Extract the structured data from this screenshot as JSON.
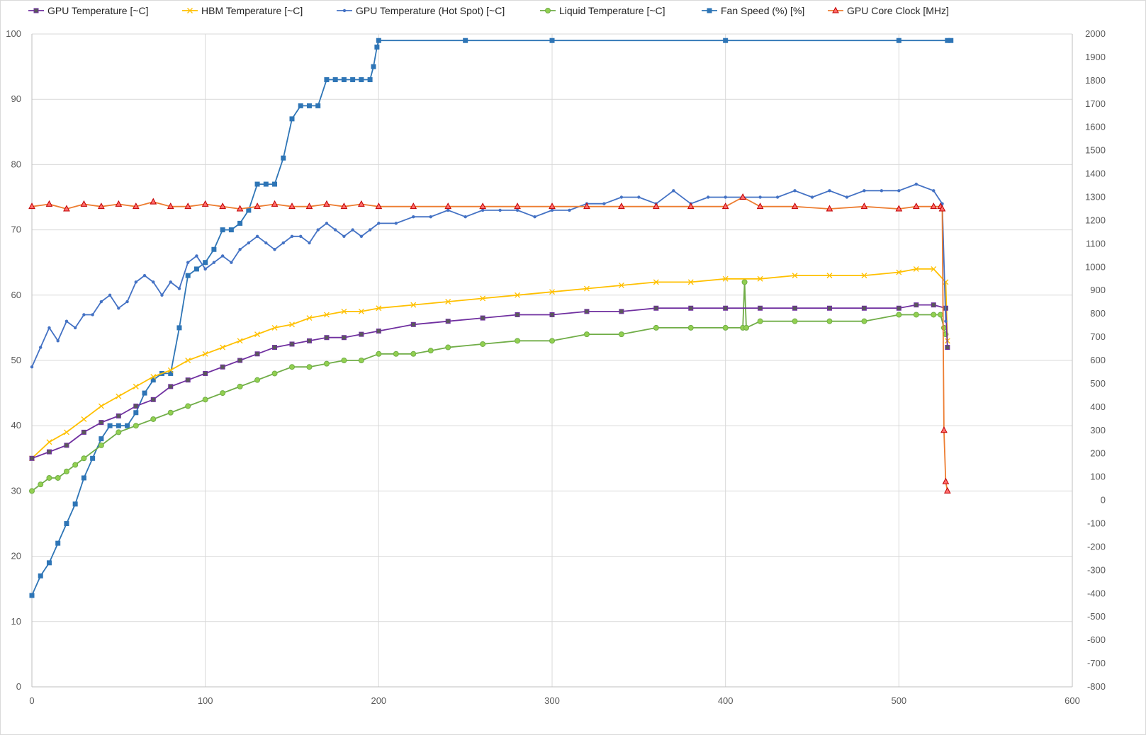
{
  "chart_data": {
    "type": "line",
    "title": "",
    "xlabel": "",
    "ylabel": "",
    "y2label": "",
    "xlim": [
      0,
      600
    ],
    "ylim": [
      0,
      100
    ],
    "y2lim": [
      -800,
      2000
    ],
    "x_ticks": [
      0,
      100,
      200,
      300,
      400,
      500,
      600
    ],
    "y_ticks": [
      0,
      10,
      20,
      30,
      40,
      50,
      60,
      70,
      80,
      90,
      100
    ],
    "y2_ticks": [
      -800,
      -700,
      -600,
      -500,
      -400,
      -300,
      -200,
      -100,
      0,
      100,
      200,
      300,
      400,
      500,
      600,
      700,
      800,
      900,
      1000,
      1100,
      1200,
      1300,
      1400,
      1500,
      1600,
      1700,
      1800,
      1900,
      2000
    ],
    "grid": true,
    "legend_position": "top",
    "series": [
      {
        "name": "GPU Temperature [~C]",
        "axis": "left",
        "color": "#7030a0",
        "marker_color": "#595959",
        "marker": "square-small",
        "x": [
          0,
          10,
          20,
          30,
          40,
          50,
          60,
          70,
          80,
          90,
          100,
          110,
          120,
          130,
          140,
          150,
          160,
          170,
          180,
          190,
          200,
          220,
          240,
          260,
          280,
          300,
          320,
          340,
          360,
          380,
          400,
          420,
          440,
          460,
          480,
          500,
          510,
          520,
          527,
          528
        ],
        "values": [
          35,
          36,
          37,
          39,
          40.5,
          41.5,
          43,
          44,
          46,
          47,
          48,
          49,
          50,
          51,
          52,
          52.5,
          53,
          53.5,
          53.5,
          54,
          54.5,
          55.5,
          56,
          56.5,
          57,
          57,
          57.5,
          57.5,
          58,
          58,
          58,
          58,
          58,
          58,
          58,
          58,
          58.5,
          58.5,
          58,
          52
        ]
      },
      {
        "name": "HBM Temperature [~C]",
        "axis": "left",
        "color": "#ffc000",
        "marker": "x",
        "x": [
          0,
          10,
          20,
          30,
          40,
          50,
          60,
          70,
          80,
          90,
          100,
          110,
          120,
          130,
          140,
          150,
          160,
          170,
          180,
          190,
          200,
          220,
          240,
          260,
          280,
          300,
          320,
          340,
          360,
          380,
          400,
          420,
          440,
          460,
          480,
          500,
          510,
          520,
          527,
          528
        ],
        "values": [
          35,
          37.5,
          39,
          41,
          43,
          44.5,
          46,
          47.5,
          48.5,
          50,
          51,
          52,
          53,
          54,
          55,
          55.5,
          56.5,
          57,
          57.5,
          57.5,
          58,
          58.5,
          59,
          59.5,
          60,
          60.5,
          61,
          61.5,
          62,
          62,
          62.5,
          62.5,
          63,
          63,
          63,
          63.5,
          64,
          64,
          62,
          53
        ]
      },
      {
        "name": "GPU Temperature (Hot Spot) [~C]",
        "axis": "left",
        "color": "#4472c4",
        "marker": "dot",
        "x": [
          0,
          5,
          10,
          15,
          20,
          25,
          30,
          35,
          40,
          45,
          50,
          55,
          60,
          65,
          70,
          75,
          80,
          85,
          90,
          95,
          100,
          105,
          110,
          115,
          120,
          125,
          130,
          135,
          140,
          145,
          150,
          155,
          160,
          165,
          170,
          175,
          180,
          185,
          190,
          195,
          200,
          210,
          220,
          230,
          240,
          250,
          260,
          270,
          280,
          290,
          300,
          310,
          320,
          330,
          340,
          350,
          360,
          370,
          380,
          390,
          400,
          410,
          420,
          430,
          440,
          450,
          460,
          470,
          480,
          490,
          500,
          510,
          520,
          525,
          527
        ],
        "values": [
          49,
          52,
          55,
          53,
          56,
          55,
          57,
          57,
          59,
          60,
          58,
          59,
          62,
          63,
          62,
          60,
          62,
          61,
          65,
          66,
          64,
          65,
          66,
          65,
          67,
          68,
          69,
          68,
          67,
          68,
          69,
          69,
          68,
          70,
          71,
          70,
          69,
          70,
          69,
          70,
          71,
          71,
          72,
          72,
          73,
          72,
          73,
          73,
          73,
          72,
          73,
          73,
          74,
          74,
          75,
          75,
          74,
          76,
          74,
          75,
          75,
          75,
          75,
          75,
          76,
          75,
          76,
          75,
          76,
          76,
          76,
          77,
          76,
          74,
          56
        ]
      },
      {
        "name": "Liquid Temperature [~C]",
        "axis": "left",
        "color": "#70ad47",
        "marker": "circle",
        "x": [
          0,
          5,
          10,
          15,
          20,
          25,
          30,
          40,
          50,
          60,
          70,
          80,
          90,
          100,
          110,
          120,
          130,
          140,
          150,
          160,
          170,
          180,
          190,
          200,
          210,
          220,
          230,
          240,
          260,
          280,
          300,
          320,
          340,
          360,
          380,
          400,
          410,
          411,
          412,
          420,
          440,
          460,
          480,
          500,
          510,
          520,
          524,
          526,
          527
        ],
        "values": [
          30,
          31,
          32,
          32,
          33,
          34,
          35,
          37,
          39,
          40,
          41,
          42,
          43,
          44,
          45,
          46,
          47,
          48,
          49,
          49,
          49.5,
          50,
          50,
          51,
          51,
          51,
          51.5,
          52,
          52.5,
          53,
          53,
          54,
          54,
          55,
          55,
          55,
          55,
          62,
          55,
          56,
          56,
          56,
          56,
          57,
          57,
          57,
          57,
          55,
          54
        ]
      },
      {
        "name": "Fan Speed (%) [%]",
        "axis": "left",
        "color": "#2e75b6",
        "marker": "square",
        "x": [
          0,
          5,
          10,
          15,
          20,
          25,
          30,
          35,
          40,
          45,
          50,
          55,
          60,
          65,
          70,
          75,
          80,
          85,
          90,
          95,
          100,
          105,
          110,
          115,
          120,
          125,
          130,
          135,
          140,
          145,
          150,
          155,
          160,
          165,
          170,
          175,
          180,
          185,
          190,
          195,
          197,
          199,
          200,
          250,
          300,
          400,
          500,
          528,
          530
        ],
        "values": [
          14,
          17,
          19,
          22,
          25,
          28,
          32,
          35,
          38,
          40,
          40,
          40,
          42,
          45,
          47,
          48,
          48,
          55,
          63,
          64,
          65,
          67,
          70,
          70,
          71,
          73,
          77,
          77,
          77,
          81,
          87,
          89,
          89,
          89,
          93,
          93,
          93,
          93,
          93,
          93,
          95,
          98,
          99,
          99,
          99,
          99,
          99,
          99,
          99
        ]
      },
      {
        "name": "GPU Core Clock [MHz]",
        "axis": "right",
        "color": "#c00000",
        "line_color": "#ed7d31",
        "marker": "triangle",
        "x": [
          0,
          10,
          20,
          30,
          40,
          50,
          60,
          70,
          80,
          90,
          100,
          110,
          120,
          130,
          140,
          150,
          160,
          170,
          180,
          190,
          200,
          220,
          240,
          260,
          280,
          300,
          320,
          340,
          360,
          380,
          400,
          410,
          420,
          440,
          460,
          480,
          500,
          510,
          520,
          524,
          525,
          526,
          527,
          528
        ],
        "values": [
          1260,
          1270,
          1250,
          1270,
          1260,
          1270,
          1260,
          1280,
          1260,
          1260,
          1270,
          1260,
          1250,
          1260,
          1270,
          1260,
          1260,
          1270,
          1260,
          1270,
          1260,
          1260,
          1260,
          1260,
          1260,
          1260,
          1260,
          1260,
          1260,
          1260,
          1260,
          1300,
          1260,
          1260,
          1250,
          1260,
          1250,
          1260,
          1260,
          1260,
          1250,
          300,
          80,
          40
        ]
      }
    ]
  }
}
